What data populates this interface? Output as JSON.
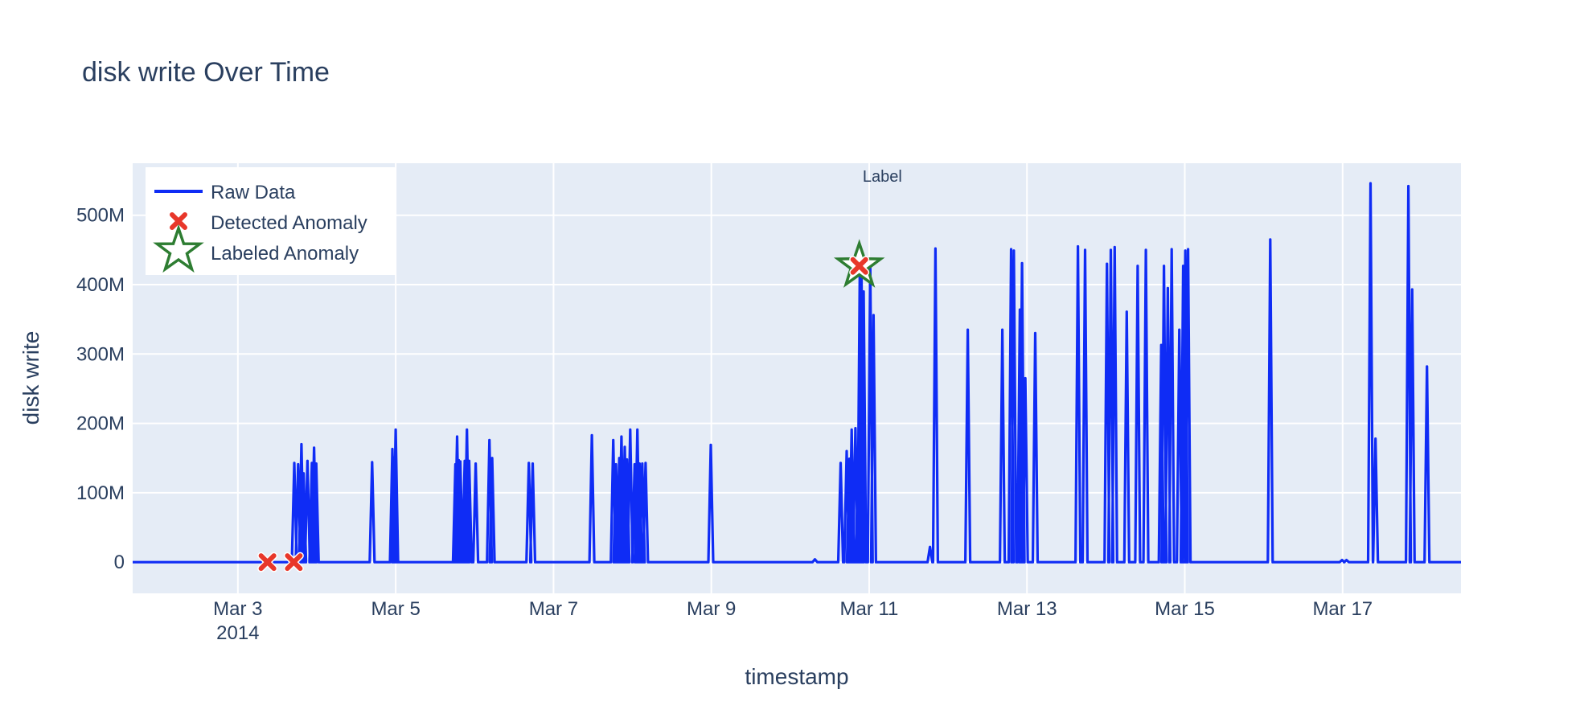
{
  "chart_data": {
    "type": "line",
    "title": "disk write Over Time",
    "xlabel": "timestamp",
    "ylabel": "disk write",
    "xlim": [
      "2014-03-01 16:00",
      "2014-03-18 12:00"
    ],
    "ylim": [
      -45000000,
      575000000
    ],
    "x_ticks": [
      {
        "date": "2014-03-03",
        "label": "Mar 3",
        "sub": "2014"
      },
      {
        "date": "2014-03-05",
        "label": "Mar 5"
      },
      {
        "date": "2014-03-07",
        "label": "Mar 7"
      },
      {
        "date": "2014-03-09",
        "label": "Mar 9"
      },
      {
        "date": "2014-03-11",
        "label": "Mar 11"
      },
      {
        "date": "2014-03-13",
        "label": "Mar 13"
      },
      {
        "date": "2014-03-15",
        "label": "Mar 15"
      },
      {
        "date": "2014-03-17",
        "label": "Mar 17"
      }
    ],
    "y_ticks": [
      {
        "value": 0,
        "label": "0"
      },
      {
        "value": 100000000,
        "label": "100M"
      },
      {
        "value": 200000000,
        "label": "200M"
      },
      {
        "value": 300000000,
        "label": "300M"
      },
      {
        "value": 400000000,
        "label": "400M"
      },
      {
        "value": 500000000,
        "label": "500M"
      }
    ],
    "grid": true,
    "legend_position": "top-left",
    "series": [
      {
        "name": "Raw Data",
        "color": "#0f2cf5",
        "spikes": [
          [
            "2014-03-03 17:10",
            143000000
          ],
          [
            "2014-03-03 18:20",
            141000000
          ],
          [
            "2014-03-03 19:20",
            170000000
          ],
          [
            "2014-03-03 20:00",
            128000000
          ],
          [
            "2014-03-03 21:10",
            146000000
          ],
          [
            "2014-03-03 22:30",
            143000000
          ],
          [
            "2014-03-03 23:10",
            165000000
          ],
          [
            "2014-03-03 23:50",
            142000000
          ],
          [
            "2014-03-04 16:50",
            144000000
          ],
          [
            "2014-03-04 23:00",
            163000000
          ],
          [
            "2014-03-04 23:40",
            151000000
          ],
          [
            "2014-03-05 00:00",
            191000000
          ],
          [
            "2014-03-05 18:10",
            141000000
          ],
          [
            "2014-03-05 18:40",
            181000000
          ],
          [
            "2014-03-05 19:10",
            147000000
          ],
          [
            "2014-03-05 19:40",
            145000000
          ],
          [
            "2014-03-05 21:00",
            146000000
          ],
          [
            "2014-03-05 21:40",
            191000000
          ],
          [
            "2014-03-05 22:20",
            146000000
          ],
          [
            "2014-03-06 00:20",
            142000000
          ],
          [
            "2014-03-06 04:30",
            176000000
          ],
          [
            "2014-03-06 05:20",
            150000000
          ],
          [
            "2014-03-06 16:30",
            143000000
          ],
          [
            "2014-03-06 17:40",
            142000000
          ],
          [
            "2014-03-07 11:40",
            183000000
          ],
          [
            "2014-03-07 18:10",
            176000000
          ],
          [
            "2014-03-07 19:00",
            141000000
          ],
          [
            "2014-03-07 20:00",
            150000000
          ],
          [
            "2014-03-07 20:40",
            181000000
          ],
          [
            "2014-03-07 21:40",
            166000000
          ],
          [
            "2014-03-07 22:20",
            148000000
          ],
          [
            "2014-03-07 23:20",
            191000000
          ],
          [
            "2014-03-08 00:40",
            141000000
          ],
          [
            "2014-03-08 01:30",
            191000000
          ],
          [
            "2014-03-08 02:10",
            142000000
          ],
          [
            "2014-03-08 03:00",
            142000000
          ],
          [
            "2014-03-08 04:00",
            143000000
          ],
          [
            "2014-03-08 23:50",
            169000000
          ],
          [
            "2014-03-10 07:30",
            4000000
          ],
          [
            "2014-03-10 15:20",
            143000000
          ],
          [
            "2014-03-10 17:10",
            160000000
          ],
          [
            "2014-03-10 18:00",
            149000000
          ],
          [
            "2014-03-10 18:40",
            191000000
          ],
          [
            "2014-03-10 19:50",
            193000000
          ],
          [
            "2014-03-10 20:40",
            155000000
          ],
          [
            "2014-03-10 21:10",
            430000000
          ],
          [
            "2014-03-10 21:40",
            418000000
          ],
          [
            "2014-03-10 22:20",
            390000000
          ],
          [
            "2014-03-11 00:20",
            430000000
          ],
          [
            "2014-03-11 01:20",
            356000000
          ],
          [
            "2014-03-11 18:30",
            22000000
          ],
          [
            "2014-03-11 20:10",
            452000000
          ],
          [
            "2014-03-12 06:00",
            335000000
          ],
          [
            "2014-03-12 16:30",
            335000000
          ],
          [
            "2014-03-12 19:10",
            451000000
          ],
          [
            "2014-03-12 20:00",
            449000000
          ],
          [
            "2014-03-12 21:50",
            364000000
          ],
          [
            "2014-03-12 22:30",
            431000000
          ],
          [
            "2014-03-12 23:30",
            265000000
          ],
          [
            "2014-03-13 02:30",
            330000000
          ],
          [
            "2014-03-13 15:30",
            455000000
          ],
          [
            "2014-03-13 17:40",
            450000000
          ],
          [
            "2014-03-14 00:20",
            430000000
          ],
          [
            "2014-03-14 01:30",
            450000000
          ],
          [
            "2014-03-14 02:40",
            454000000
          ],
          [
            "2014-03-14 06:20",
            361000000
          ],
          [
            "2014-03-14 09:40",
            427000000
          ],
          [
            "2014-03-14 12:10",
            450000000
          ],
          [
            "2014-03-14 16:50",
            313000000
          ],
          [
            "2014-03-14 17:40",
            427000000
          ],
          [
            "2014-03-14 18:50",
            395000000
          ],
          [
            "2014-03-14 20:00",
            451000000
          ],
          [
            "2014-03-14 22:20",
            335000000
          ],
          [
            "2014-03-14 23:30",
            427000000
          ],
          [
            "2014-03-15 00:10",
            449000000
          ],
          [
            "2014-03-15 01:00",
            451000000
          ],
          [
            "2014-03-16 02:00",
            465000000
          ],
          [
            "2014-03-16 23:50",
            3000000
          ],
          [
            "2014-03-17 01:10",
            3000000
          ],
          [
            "2014-03-17 08:30",
            546000000
          ],
          [
            "2014-03-17 10:00",
            178000000
          ],
          [
            "2014-03-17 20:00",
            542000000
          ],
          [
            "2014-03-17 21:10",
            393000000
          ],
          [
            "2014-03-18 01:40",
            282000000
          ]
        ]
      },
      {
        "name": "Detected Anomaly",
        "color": "#e8372a",
        "points": [
          [
            "2014-03-03 09:00",
            0
          ],
          [
            "2014-03-03 17:00",
            0
          ],
          [
            "2014-03-10 21:00",
            427000000
          ]
        ]
      },
      {
        "name": "Labeled Anomaly",
        "color": "#2e7d32",
        "points": [
          [
            "2014-03-10 21:00",
            427000000
          ]
        ]
      }
    ],
    "annotations": [
      {
        "x": "2014-03-11 04:00",
        "text": "Label"
      }
    ]
  }
}
